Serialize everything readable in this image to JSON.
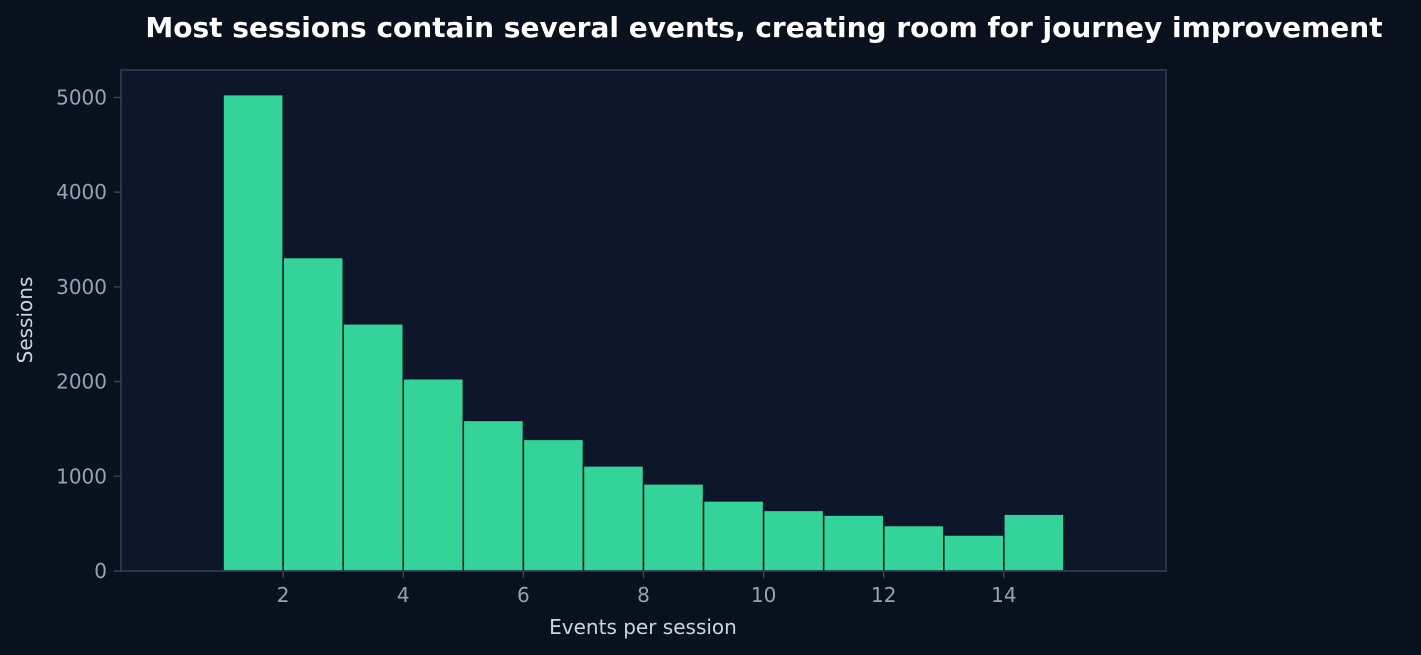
{
  "colors": {
    "figure_background": "#0a111e",
    "plot_background": "#0d1729",
    "bar_fill": "#34d399",
    "bar_edge": "#0d1729",
    "spine": "#334155",
    "tick_label": "#94a3b8",
    "axis_label": "#cbd5e1",
    "title": "#ffffff"
  },
  "chart_data": {
    "type": "bar",
    "title": "Most sessions contain several events, creating room for journey improvement",
    "xlabel": "Events per session",
    "ylabel": "Sessions",
    "bin_edges": [
      1,
      2,
      3,
      4,
      5,
      6,
      7,
      8,
      9,
      10,
      11,
      12,
      13,
      14,
      15
    ],
    "values": [
      5030,
      3310,
      2610,
      2030,
      1590,
      1390,
      1110,
      920,
      740,
      640,
      590,
      480,
      380,
      600
    ],
    "xlim": [
      -0.7,
      16.7
    ],
    "ylim": [
      0,
      5290
    ],
    "x_ticks": [
      2,
      4,
      6,
      8,
      10,
      12,
      14
    ],
    "y_ticks": [
      0,
      1000,
      2000,
      3000,
      4000,
      5000
    ],
    "grid": false,
    "legend": false
  }
}
